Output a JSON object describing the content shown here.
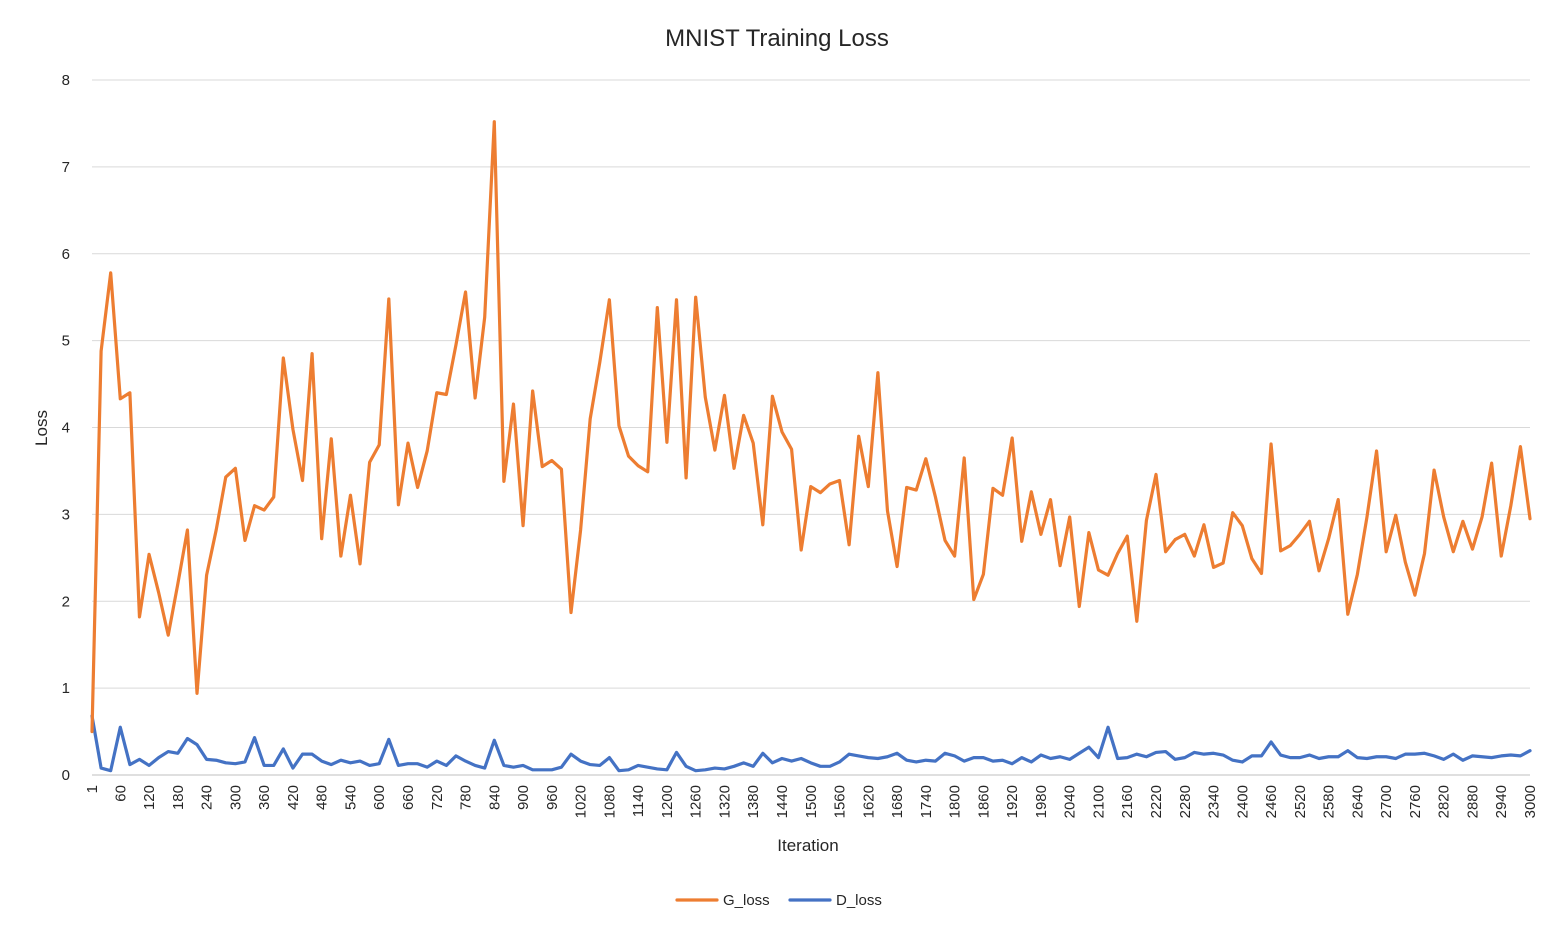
{
  "chart_data": {
    "type": "line",
    "title": "MNIST Training Loss",
    "xlabel": "Iteration",
    "ylabel": "Loss",
    "ylim": [
      0,
      8
    ],
    "yticks": [
      "0",
      "1",
      "2",
      "3",
      "4",
      "5",
      "6",
      "7",
      "8"
    ],
    "grid": true,
    "legend_position": "bottom",
    "xticks": [
      "1",
      "60",
      "120",
      "180",
      "240",
      "300",
      "360",
      "420",
      "480",
      "540",
      "600",
      "660",
      "720",
      "780",
      "840",
      "900",
      "960",
      "1020",
      "1080",
      "1140",
      "1200",
      "1260",
      "1320",
      "1380",
      "1440",
      "1500",
      "1560",
      "1620",
      "1680",
      "1740",
      "1800",
      "1860",
      "1920",
      "1980",
      "2040",
      "2100",
      "2160",
      "2220",
      "2280",
      "2340",
      "2400",
      "2460",
      "2520",
      "2580",
      "2640",
      "2700",
      "2760",
      "2820",
      "2880",
      "2940",
      "3000"
    ],
    "x": [
      1,
      20,
      40,
      60,
      80,
      100,
      120,
      140,
      160,
      180,
      200,
      220,
      240,
      260,
      280,
      300,
      320,
      340,
      360,
      380,
      400,
      420,
      440,
      460,
      480,
      500,
      520,
      540,
      560,
      580,
      600,
      620,
      640,
      660,
      680,
      700,
      720,
      740,
      760,
      780,
      800,
      820,
      840,
      860,
      880,
      900,
      920,
      940,
      960,
      980,
      1000,
      1020,
      1040,
      1060,
      1080,
      1100,
      1120,
      1140,
      1160,
      1180,
      1200,
      1220,
      1240,
      1260,
      1280,
      1300,
      1320,
      1340,
      1360,
      1380,
      1400,
      1420,
      1440,
      1460,
      1480,
      1500,
      1520,
      1540,
      1560,
      1580,
      1600,
      1620,
      1640,
      1660,
      1680,
      1700,
      1720,
      1740,
      1760,
      1780,
      1800,
      1820,
      1840,
      1860,
      1880,
      1900,
      1920,
      1940,
      1960,
      1980,
      2000,
      2020,
      2040,
      2060,
      2080,
      2100,
      2120,
      2140,
      2160,
      2180,
      2200,
      2220,
      2240,
      2260,
      2280,
      2300,
      2320,
      2340,
      2360,
      2380,
      2400,
      2420,
      2440,
      2460,
      2480,
      2500,
      2520,
      2540,
      2560,
      2580,
      2600,
      2620,
      2640,
      2660,
      2680,
      2700,
      2720,
      2740,
      2760,
      2780,
      2800,
      2820,
      2840,
      2860,
      2880,
      2900,
      2920,
      2940,
      2960,
      2980,
      3000
    ],
    "series": [
      {
        "name": "G_loss",
        "color": "#ed7d31",
        "values": [
          0.5,
          4.88,
          5.78,
          4.33,
          4.4,
          1.82,
          2.54,
          2.1,
          1.61,
          2.2,
          2.82,
          0.94,
          2.3,
          2.82,
          3.43,
          3.53,
          2.7,
          3.1,
          3.05,
          3.2,
          4.8,
          3.98,
          3.39,
          4.85,
          2.72,
          3.87,
          2.52,
          3.22,
          2.43,
          3.6,
          3.8,
          5.48,
          3.11,
          3.82,
          3.31,
          3.73,
          4.4,
          4.38,
          4.95,
          5.56,
          4.34,
          5.27,
          7.52,
          3.38,
          4.27,
          2.87,
          4.42,
          3.55,
          3.62,
          3.52,
          1.87,
          2.82,
          4.1,
          4.75,
          5.47,
          4.02,
          3.67,
          3.56,
          3.49,
          5.38,
          3.83,
          5.47,
          3.42,
          5.5,
          4.35,
          3.74,
          4.37,
          3.53,
          4.14,
          3.82,
          2.88,
          4.36,
          3.95,
          3.75,
          2.59,
          3.32,
          3.25,
          3.35,
          3.39,
          2.65,
          3.9,
          3.32,
          4.63,
          3.04,
          2.4,
          3.31,
          3.28,
          3.64,
          3.2,
          2.7,
          2.52,
          3.65,
          2.02,
          2.31,
          3.3,
          3.22,
          3.88,
          2.69,
          3.26,
          2.77,
          3.17,
          2.41,
          2.97,
          1.94,
          2.79,
          2.36,
          2.3,
          2.55,
          2.75,
          1.77,
          2.93,
          3.46,
          2.57,
          2.71,
          2.77,
          2.52,
          2.88,
          2.39,
          2.44,
          3.02,
          2.87,
          2.49,
          2.32,
          3.81,
          2.58,
          2.64,
          2.77,
          2.92,
          2.35,
          2.72,
          3.17,
          1.85,
          2.31,
          2.97,
          3.73,
          2.57,
          2.99,
          2.45,
          2.07,
          2.55,
          3.51,
          2.97,
          2.57,
          2.92,
          2.6,
          2.97,
          3.59,
          2.52,
          3.1,
          3.78,
          2.95
        ]
      },
      {
        "name": "D_loss",
        "color": "#4472c4",
        "values": [
          0.68,
          0.08,
          0.05,
          0.55,
          0.12,
          0.18,
          0.11,
          0.2,
          0.27,
          0.25,
          0.42,
          0.35,
          0.18,
          0.17,
          0.14,
          0.13,
          0.15,
          0.43,
          0.11,
          0.11,
          0.3,
          0.08,
          0.24,
          0.24,
          0.16,
          0.12,
          0.17,
          0.14,
          0.16,
          0.11,
          0.13,
          0.41,
          0.11,
          0.13,
          0.13,
          0.09,
          0.16,
          0.11,
          0.22,
          0.16,
          0.11,
          0.08,
          0.4,
          0.11,
          0.09,
          0.11,
          0.06,
          0.06,
          0.06,
          0.09,
          0.24,
          0.16,
          0.12,
          0.11,
          0.2,
          0.05,
          0.06,
          0.11,
          0.09,
          0.07,
          0.06,
          0.26,
          0.1,
          0.05,
          0.06,
          0.08,
          0.07,
          0.1,
          0.14,
          0.1,
          0.25,
          0.14,
          0.19,
          0.16,
          0.19,
          0.14,
          0.1,
          0.1,
          0.15,
          0.24,
          0.22,
          0.2,
          0.19,
          0.21,
          0.25,
          0.17,
          0.15,
          0.17,
          0.16,
          0.25,
          0.22,
          0.16,
          0.2,
          0.2,
          0.16,
          0.17,
          0.13,
          0.2,
          0.15,
          0.23,
          0.19,
          0.21,
          0.18,
          0.25,
          0.32,
          0.2,
          0.55,
          0.19,
          0.2,
          0.24,
          0.21,
          0.26,
          0.27,
          0.18,
          0.2,
          0.26,
          0.24,
          0.25,
          0.23,
          0.17,
          0.15,
          0.22,
          0.22,
          0.38,
          0.23,
          0.2,
          0.2,
          0.23,
          0.19,
          0.21,
          0.21,
          0.28,
          0.2,
          0.19,
          0.21,
          0.21,
          0.19,
          0.24,
          0.24,
          0.25,
          0.22,
          0.18,
          0.24,
          0.17,
          0.22,
          0.21,
          0.2,
          0.22,
          0.23,
          0.22,
          0.28
        ]
      }
    ]
  }
}
